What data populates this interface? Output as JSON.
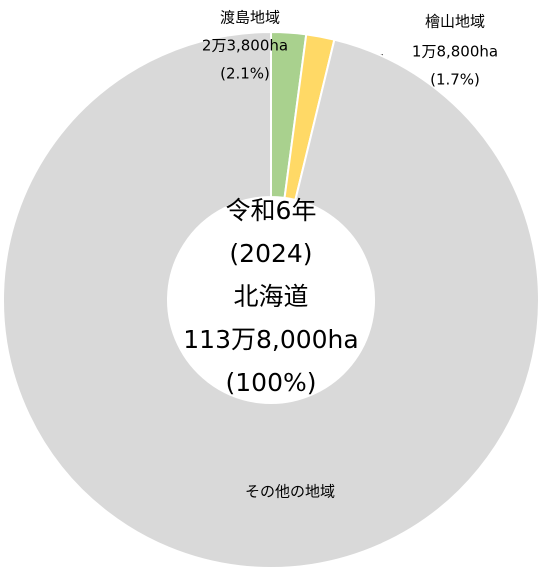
{
  "chart_data": {
    "type": "donut",
    "categories": [
      "渡島地域",
      "檜山地域",
      "その他の地域"
    ],
    "values": [
      2.1,
      1.7,
      96.2
    ],
    "value_labels": [
      "(2.1%)",
      "(1.7%)",
      null
    ],
    "area_labels": [
      "2万3,800ha",
      "1万8,800ha",
      null
    ],
    "colors": [
      "#a9d18e",
      "#ffd966",
      "#d9d9d9"
    ],
    "center_text": [
      "令和6年",
      "(2024)",
      "北海道",
      "113万8,000ha",
      "(100%)"
    ]
  }
}
